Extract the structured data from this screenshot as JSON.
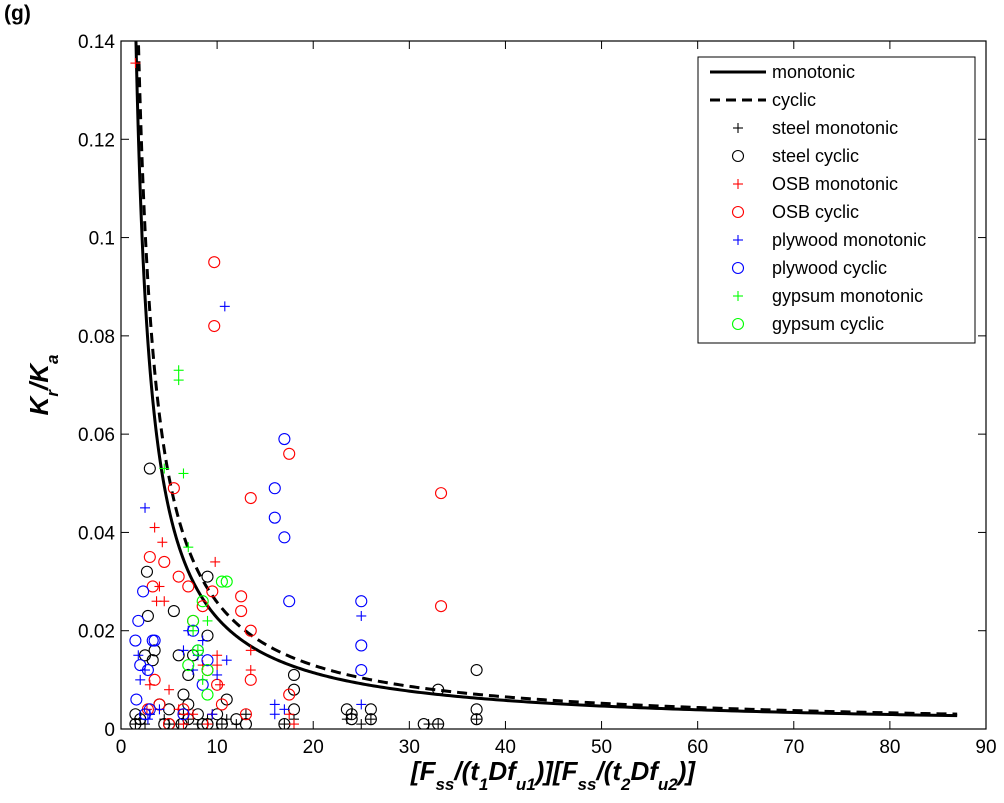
{
  "panel_label": "(g)",
  "chart_data": {
    "type": "scatter",
    "xlim": [
      0,
      90
    ],
    "ylim": [
      0,
      0.14
    ],
    "xticks": [
      0,
      10,
      20,
      30,
      40,
      50,
      60,
      70,
      80,
      90
    ],
    "yticks": [
      0,
      0.02,
      0.04,
      0.06,
      0.08,
      0.1,
      0.12,
      0.14
    ],
    "ytick_labels": [
      "0",
      "0.02",
      "0.04",
      "0.06",
      "0.08",
      "0.1",
      "0.12",
      "0.14"
    ],
    "xlabel_parts": [
      {
        "t": "[F",
        "sub": false
      },
      {
        "t": "ss",
        "sub": true
      },
      {
        "t": "/(t",
        "sub": false
      },
      {
        "t": "1",
        "sub": true
      },
      {
        "t": "Df",
        "sub": false
      },
      {
        "t": "u1",
        "sub": true
      },
      {
        "t": ")][F",
        "sub": false
      },
      {
        "t": "ss",
        "sub": true
      },
      {
        "t": "/(t",
        "sub": false
      },
      {
        "t": "2",
        "sub": true
      },
      {
        "t": "Df",
        "sub": false
      },
      {
        "t": "u2",
        "sub": true
      },
      {
        "t": ")]",
        "sub": false
      }
    ],
    "ylabel_parts": [
      {
        "t": "K",
        "sub": false
      },
      {
        "t": "r",
        "sub": true
      },
      {
        "t": "/K",
        "sub": false
      },
      {
        "t": "a",
        "sub": true
      }
    ],
    "legend_position": "top-right",
    "curves": [
      {
        "name": "monotonic",
        "style": "solid",
        "color": "#000000",
        "coef": 0.216,
        "exp": 0.98,
        "xmin": 1.5,
        "xmax": 87
      },
      {
        "name": "cyclic",
        "style": "dashed",
        "color": "#000000",
        "coef": 0.252,
        "exp": 0.99,
        "xmin": 1.78,
        "xmax": 87
      }
    ],
    "series": [
      {
        "name": "steel monotonic",
        "marker": "plus",
        "color": "#000000",
        "points": [
          [
            1.5,
            0.001
          ],
          [
            2,
            0.002
          ],
          [
            2.5,
            0.001
          ],
          [
            3,
            0.003
          ],
          [
            4.5,
            0.002
          ],
          [
            5,
            0.001
          ],
          [
            6,
            0.001
          ],
          [
            6.5,
            0.003
          ],
          [
            7,
            0.002
          ],
          [
            8,
            0.001
          ],
          [
            9,
            0.002
          ],
          [
            10.5,
            0.001
          ],
          [
            11,
            0.002
          ],
          [
            12,
            0.001
          ],
          [
            13,
            0.003
          ],
          [
            17,
            0.001
          ],
          [
            18,
            0.002
          ],
          [
            23.5,
            0.002
          ],
          [
            24,
            0.003
          ],
          [
            25,
            0.001
          ],
          [
            26,
            0.002
          ],
          [
            32,
            0.001
          ],
          [
            33,
            0.001
          ],
          [
            37,
            0.002
          ]
        ]
      },
      {
        "name": "steel cyclic",
        "marker": "circle",
        "color": "#000000",
        "points": [
          [
            1.5,
            0.001
          ],
          [
            1.5,
            0.003
          ],
          [
            2,
            0.002
          ],
          [
            2.5,
            0.015
          ],
          [
            2.7,
            0.032
          ],
          [
            2.8,
            0.023
          ],
          [
            3,
            0.053
          ],
          [
            3.3,
            0.014
          ],
          [
            3.5,
            0.016
          ],
          [
            4,
            0.005
          ],
          [
            4.5,
            0.001
          ],
          [
            5,
            0.004
          ],
          [
            5,
            0.001
          ],
          [
            5.5,
            0.024
          ],
          [
            6,
            0.015
          ],
          [
            6.3,
            0.001
          ],
          [
            6.5,
            0.007
          ],
          [
            7,
            0.002
          ],
          [
            7,
            0.011
          ],
          [
            7,
            0.005
          ],
          [
            7.5,
            0.015
          ],
          [
            8,
            0.003
          ],
          [
            8.5,
            0.001
          ],
          [
            9,
            0.031
          ],
          [
            9,
            0.019
          ],
          [
            9,
            0.001
          ],
          [
            10,
            0.003
          ],
          [
            10.5,
            0.001
          ],
          [
            11,
            0.006
          ],
          [
            12,
            0.002
          ],
          [
            13,
            0.001
          ],
          [
            17,
            0.001
          ],
          [
            18,
            0.008
          ],
          [
            18,
            0.004
          ],
          [
            18,
            0.011
          ],
          [
            23.5,
            0.004
          ],
          [
            24,
            0.002
          ],
          [
            24,
            0.003
          ],
          [
            26,
            0.004
          ],
          [
            26,
            0.002
          ],
          [
            31.5,
            0.001
          ],
          [
            33,
            0.008
          ],
          [
            33,
            0.001
          ],
          [
            37,
            0.012
          ],
          [
            37,
            0.004
          ],
          [
            37,
            0.002
          ]
        ]
      },
      {
        "name": "OSB monotonic",
        "marker": "plus",
        "color": "#ff0000",
        "points": [
          [
            1.5,
            0.1355
          ],
          [
            2.7,
            0.004
          ],
          [
            3,
            0.009
          ],
          [
            3.5,
            0.041
          ],
          [
            3.7,
            0.026
          ],
          [
            4,
            0.029
          ],
          [
            4.3,
            0.038
          ],
          [
            4.5,
            0.026
          ],
          [
            5,
            0.008
          ],
          [
            6,
            0.004
          ],
          [
            6.5,
            0.001
          ],
          [
            7,
            0.003
          ],
          [
            7.5,
            0.003
          ],
          [
            8.5,
            0.013
          ],
          [
            9,
            0.001
          ],
          [
            9.5,
            0.003
          ],
          [
            9.8,
            0.034
          ],
          [
            10,
            0.013
          ],
          [
            10,
            0.015
          ],
          [
            10.3,
            0.009
          ],
          [
            13.5,
            0.012
          ],
          [
            13.5,
            0.016
          ],
          [
            17.5,
            0.003
          ],
          [
            18,
            0.001
          ]
        ]
      },
      {
        "name": "OSB cyclic",
        "marker": "circle",
        "color": "#ff0000",
        "points": [
          [
            2.8,
            0.004
          ],
          [
            3,
            0.035
          ],
          [
            3.3,
            0.029
          ],
          [
            3.5,
            0.01
          ],
          [
            4,
            0.005
          ],
          [
            4.5,
            0.034
          ],
          [
            5,
            0.001
          ],
          [
            5.5,
            0.049
          ],
          [
            6,
            0.031
          ],
          [
            6.5,
            0.004
          ],
          [
            7,
            0.029
          ],
          [
            7.5,
            0.022
          ],
          [
            8.5,
            0.025
          ],
          [
            9,
            0.012
          ],
          [
            9.5,
            0.028
          ],
          [
            9.7,
            0.095
          ],
          [
            9.7,
            0.082
          ],
          [
            10,
            0.009
          ],
          [
            10.5,
            0.005
          ],
          [
            12.5,
            0.024
          ],
          [
            12.5,
            0.027
          ],
          [
            13,
            0.003
          ],
          [
            13.5,
            0.047
          ],
          [
            13.5,
            0.02
          ],
          [
            13.5,
            0.01
          ],
          [
            17.5,
            0.056
          ],
          [
            17.5,
            0.007
          ],
          [
            33.3,
            0.048
          ],
          [
            33.3,
            0.025
          ]
        ]
      },
      {
        "name": "plywood monotonic",
        "marker": "plus",
        "color": "#0000ff",
        "points": [
          [
            1.8,
            0.015
          ],
          [
            2,
            0.01
          ],
          [
            2.5,
            0.045
          ],
          [
            2.5,
            0.012
          ],
          [
            2.8,
            0.002
          ],
          [
            3,
            0.003
          ],
          [
            4,
            0.004
          ],
          [
            6.5,
            0.016
          ],
          [
            7,
            0.02
          ],
          [
            7.5,
            0.012
          ],
          [
            8,
            0.015
          ],
          [
            8.5,
            0.018
          ],
          [
            9.5,
            0.003
          ],
          [
            10,
            0.011
          ],
          [
            10.8,
            0.086
          ],
          [
            11,
            0.014
          ],
          [
            16,
            0.005
          ],
          [
            16,
            0.003
          ],
          [
            17,
            0.004
          ],
          [
            25,
            0.023
          ],
          [
            25,
            0.005
          ]
        ]
      },
      {
        "name": "plywood cyclic",
        "marker": "circle",
        "color": "#0000ff",
        "points": [
          [
            1.5,
            0.018
          ],
          [
            1.6,
            0.006
          ],
          [
            1.8,
            0.022
          ],
          [
            2,
            0.013
          ],
          [
            2.3,
            0.028
          ],
          [
            2.5,
            0.003
          ],
          [
            2.8,
            0.012
          ],
          [
            3,
            0.004
          ],
          [
            3.3,
            0.018
          ],
          [
            3.5,
            0.018
          ],
          [
            6.5,
            0.003
          ],
          [
            7.5,
            0.02
          ],
          [
            8,
            0.016
          ],
          [
            8.5,
            0.009
          ],
          [
            9,
            0.014
          ],
          [
            16,
            0.049
          ],
          [
            16,
            0.043
          ],
          [
            17,
            0.039
          ],
          [
            17,
            0.059
          ],
          [
            17.5,
            0.026
          ],
          [
            25,
            0.026
          ],
          [
            25,
            0.017
          ],
          [
            25,
            0.012
          ]
        ]
      },
      {
        "name": "gypsum monotonic",
        "marker": "plus",
        "color": "#00ff00",
        "points": [
          [
            4.5,
            0.053
          ],
          [
            6,
            0.073
          ],
          [
            6,
            0.071
          ],
          [
            6.5,
            0.052
          ],
          [
            7,
            0.037
          ],
          [
            7.5,
            0.02
          ],
          [
            8,
            0.016
          ],
          [
            8.5,
            0.01
          ],
          [
            9,
            0.022
          ]
        ]
      },
      {
        "name": "gypsum cyclic",
        "marker": "circle",
        "color": "#00ff00",
        "points": [
          [
            7,
            0.013
          ],
          [
            7.5,
            0.022
          ],
          [
            8,
            0.016
          ],
          [
            8.5,
            0.026
          ],
          [
            9,
            0.012
          ],
          [
            9,
            0.007
          ],
          [
            10.5,
            0.03
          ],
          [
            11,
            0.03
          ]
        ]
      }
    ]
  }
}
